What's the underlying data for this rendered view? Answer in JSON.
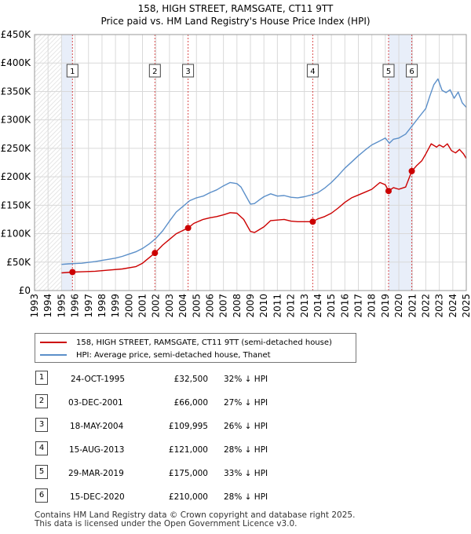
{
  "title_line1": "158, HIGH STREET, RAMSGATE, CT11 9TT",
  "title_line2": "Price paid vs. HM Land Registry's House Price Index (HPI)",
  "colors": {
    "property": "#cc0000",
    "hpi": "#5b8fc9",
    "highlight": "#e8eef9",
    "grid": "#d9d9d9"
  },
  "chart_data": {
    "type": "line",
    "title": "158, HIGH STREET, RAMSGATE, CT11 9TT",
    "subtitle": "Price paid vs. HM Land Registry's House Price Index (HPI)",
    "ylim": [
      0,
      450000
    ],
    "xlim": [
      1993,
      2025
    ],
    "y_ticks": [
      "£0",
      "£50K",
      "£100K",
      "£150K",
      "£200K",
      "£250K",
      "£300K",
      "£350K",
      "£400K",
      "£450K"
    ],
    "x_ticks": [
      "1993",
      "1994",
      "1995",
      "1996",
      "1997",
      "1998",
      "1999",
      "2000",
      "2001",
      "2002",
      "2003",
      "2004",
      "2005",
      "2006",
      "2007",
      "2008",
      "2009",
      "2010",
      "2011",
      "2012",
      "2013",
      "2014",
      "2015",
      "2016",
      "2017",
      "2018",
      "2019",
      "2020",
      "2021",
      "2022",
      "2023",
      "2024",
      "2025"
    ],
    "grid": true,
    "data_starts": 1995.0,
    "highlight_spans": [
      [
        1995.0,
        1995.81
      ],
      [
        2019.24,
        2020.96
      ]
    ],
    "series": [
      {
        "name": "158, HIGH STREET, RAMSGATE, CT11 9TT (semi-detached house)",
        "x": [
          1995.0,
          1995.81,
          1996.5,
          1997.5,
          1998.5,
          1999.5,
          2000.5,
          2001.0,
          2001.92,
          2002.5,
          2003.0,
          2003.5,
          2004.38,
          2004.8,
          2005.5,
          2006.0,
          2006.5,
          2007.0,
          2007.5,
          2008.0,
          2008.5,
          2009.0,
          2009.3,
          2010.0,
          2010.5,
          2011.0,
          2011.5,
          2012.0,
          2012.5,
          2013.0,
          2013.62,
          2014.0,
          2014.5,
          2015.0,
          2015.5,
          2016.0,
          2016.5,
          2017.0,
          2017.5,
          2018.0,
          2018.6,
          2019.0,
          2019.24,
          2019.6,
          2020.0,
          2020.5,
          2020.96,
          2021.3,
          2021.7,
          2022.0,
          2022.4,
          2022.8,
          2023.0,
          2023.3,
          2023.6,
          2023.9,
          2024.2,
          2024.5,
          2024.8,
          2025.0
        ],
        "y": [
          31000,
          32500,
          33000,
          34000,
          36000,
          38000,
          42000,
          48000,
          66000,
          80000,
          90000,
          100000,
          109995,
          118000,
          125000,
          128000,
          130000,
          133000,
          137000,
          136000,
          125000,
          104000,
          102000,
          112000,
          123000,
          124000,
          125000,
          122000,
          121000,
          121000,
          121000,
          126000,
          130000,
          136000,
          145000,
          155000,
          163000,
          168000,
          173000,
          178000,
          190000,
          186000,
          175000,
          181000,
          178000,
          182000,
          210000,
          219000,
          228000,
          240000,
          258000,
          252000,
          256000,
          252000,
          258000,
          246000,
          242000,
          248000,
          240000,
          232000
        ]
      },
      {
        "name": "HPI: Average price, semi-detached house, Thanet",
        "x": [
          1995.0,
          1995.5,
          1996.0,
          1996.5,
          1997.0,
          1997.5,
          1998.0,
          1998.5,
          1999.0,
          1999.5,
          2000.0,
          2000.5,
          2001.0,
          2001.5,
          2002.0,
          2002.5,
          2003.0,
          2003.5,
          2004.0,
          2004.5,
          2005.0,
          2005.5,
          2006.0,
          2006.5,
          2007.0,
          2007.5,
          2008.0,
          2008.3,
          2008.7,
          2009.0,
          2009.3,
          2009.7,
          2010.0,
          2010.5,
          2011.0,
          2011.5,
          2012.0,
          2012.5,
          2013.0,
          2013.5,
          2014.0,
          2014.5,
          2015.0,
          2015.5,
          2016.0,
          2016.5,
          2017.0,
          2017.5,
          2018.0,
          2018.5,
          2019.0,
          2019.3,
          2019.6,
          2020.0,
          2020.5,
          2021.0,
          2021.5,
          2022.0,
          2022.3,
          2022.6,
          2022.9,
          2023.2,
          2023.5,
          2023.8,
          2024.1,
          2024.4,
          2024.7,
          2025.0
        ],
        "y": [
          46000,
          47000,
          47500,
          48000,
          49500,
          51000,
          53000,
          55000,
          57000,
          60000,
          64000,
          68000,
          74000,
          82000,
          92000,
          105000,
          122000,
          138000,
          148000,
          158000,
          163000,
          166000,
          172000,
          177000,
          184000,
          190000,
          188000,
          182000,
          165000,
          152000,
          153000,
          160000,
          165000,
          170000,
          166000,
          167000,
          164000,
          163000,
          165000,
          168000,
          172000,
          180000,
          190000,
          202000,
          215000,
          226000,
          237000,
          247000,
          256000,
          262000,
          268000,
          259000,
          266000,
          268000,
          275000,
          290000,
          305000,
          320000,
          342000,
          362000,
          372000,
          352000,
          348000,
          353000,
          338000,
          349000,
          330000,
          322000
        ]
      }
    ],
    "sale_markers": [
      {
        "label": "1",
        "x": 1995.81,
        "y": 32500
      },
      {
        "label": "2",
        "x": 2001.92,
        "y": 66000
      },
      {
        "label": "3",
        "x": 2004.38,
        "y": 109995
      },
      {
        "label": "4",
        "x": 2013.62,
        "y": 121000
      },
      {
        "label": "5",
        "x": 2019.24,
        "y": 175000
      },
      {
        "label": "6",
        "x": 2020.96,
        "y": 210000
      }
    ]
  },
  "legend": {
    "property_label": "158, HIGH STREET, RAMSGATE, CT11 9TT (semi-detached house)",
    "hpi_label": "HPI: Average price, semi-detached house, Thanet"
  },
  "sales": [
    {
      "num": "1",
      "date": "24-OCT-1995",
      "price": "£32,500",
      "hpi": "32% ↓ HPI"
    },
    {
      "num": "2",
      "date": "03-DEC-2001",
      "price": "£66,000",
      "hpi": "27% ↓ HPI"
    },
    {
      "num": "3",
      "date": "18-MAY-2004",
      "price": "£109,995",
      "hpi": "26% ↓ HPI"
    },
    {
      "num": "4",
      "date": "15-AUG-2013",
      "price": "£121,000",
      "hpi": "28% ↓ HPI"
    },
    {
      "num": "5",
      "date": "29-MAR-2019",
      "price": "£175,000",
      "hpi": "33% ↓ HPI"
    },
    {
      "num": "6",
      "date": "15-DEC-2020",
      "price": "£210,000",
      "hpi": "28% ↓ HPI"
    }
  ],
  "footer": {
    "line1": "Contains HM Land Registry data © Crown copyright and database right 2025.",
    "line2": "This data is licensed under the Open Government Licence v3.0."
  }
}
